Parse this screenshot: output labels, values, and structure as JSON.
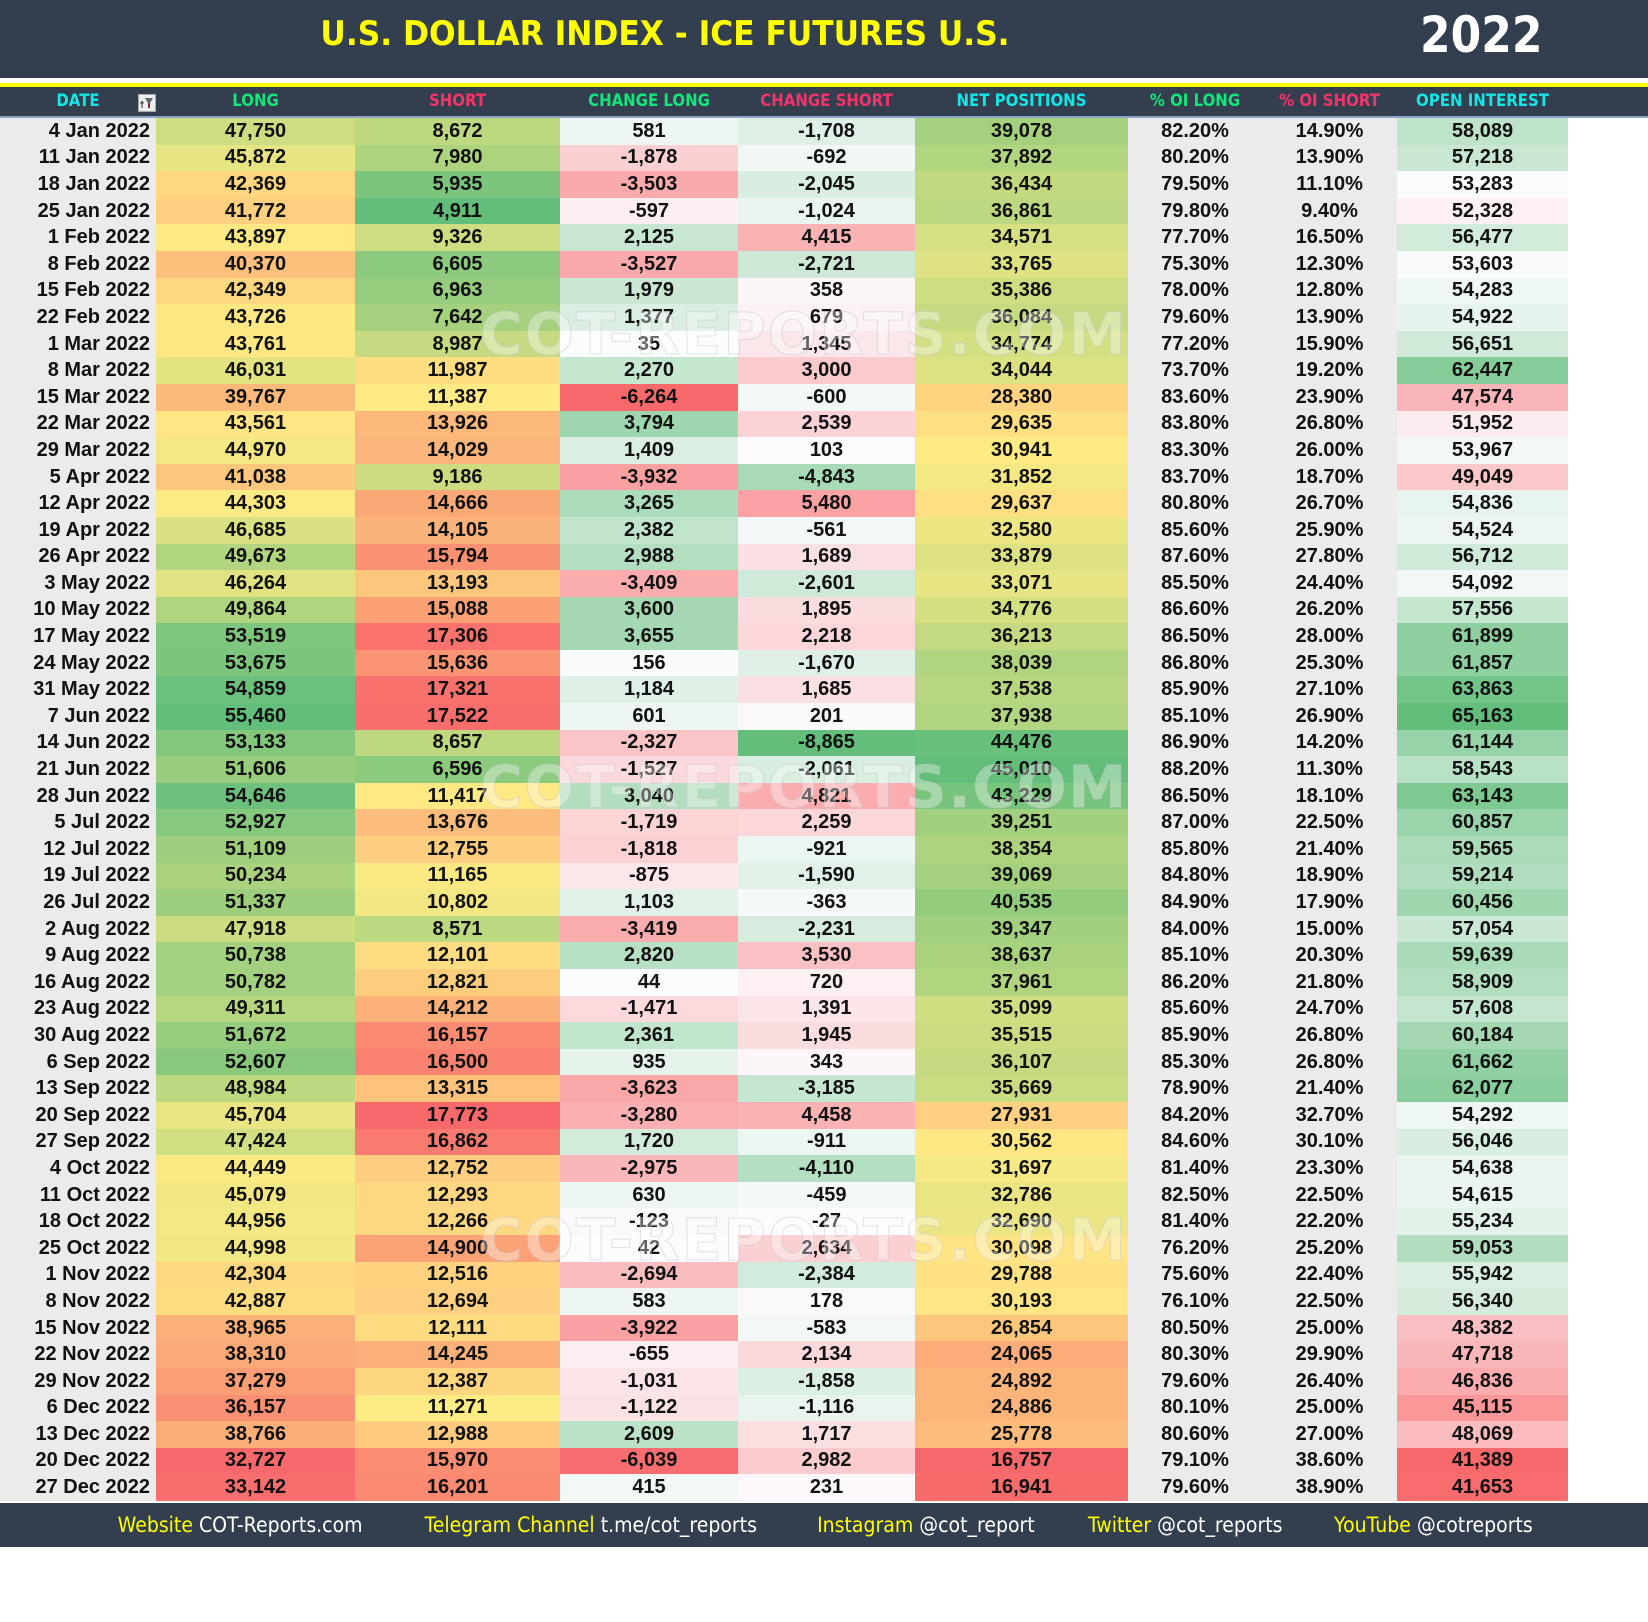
{
  "header": {
    "title": "U.S. DOLLAR INDEX - ICE FUTURES U.S.",
    "year": "2022"
  },
  "columns": [
    "DATE",
    "LONG",
    "SHORT",
    "CHANGE LONG",
    "CHANGE SHORT",
    "NET POSITIONS",
    "% OI LONG",
    "% OI SHORT",
    "OPEN INTEREST"
  ],
  "column_colors": [
    "#13e6e6",
    "#13e67a",
    "#f2346b",
    "#13e67a",
    "#f2346b",
    "#13e6e6",
    "#13e67a",
    "#f2346b",
    "#13e6e6"
  ],
  "filter_icon": "filter-icon",
  "watermark": "COT-REPORTS.COM",
  "rows": [
    [
      "4 Jan 2022",
      "47,750",
      "8,672",
      "581",
      "-1,708",
      "39,078",
      "82.20%",
      "14.90%",
      "58,089"
    ],
    [
      "11 Jan 2022",
      "45,872",
      "7,980",
      "-1,878",
      "-692",
      "37,892",
      "80.20%",
      "13.90%",
      "57,218"
    ],
    [
      "18 Jan 2022",
      "42,369",
      "5,935",
      "-3,503",
      "-2,045",
      "36,434",
      "79.50%",
      "11.10%",
      "53,283"
    ],
    [
      "25 Jan 2022",
      "41,772",
      "4,911",
      "-597",
      "-1,024",
      "36,861",
      "79.80%",
      "9.40%",
      "52,328"
    ],
    [
      "1 Feb 2022",
      "43,897",
      "9,326",
      "2,125",
      "4,415",
      "34,571",
      "77.70%",
      "16.50%",
      "56,477"
    ],
    [
      "8 Feb 2022",
      "40,370",
      "6,605",
      "-3,527",
      "-2,721",
      "33,765",
      "75.30%",
      "12.30%",
      "53,603"
    ],
    [
      "15 Feb 2022",
      "42,349",
      "6,963",
      "1,979",
      "358",
      "35,386",
      "78.00%",
      "12.80%",
      "54,283"
    ],
    [
      "22 Feb 2022",
      "43,726",
      "7,642",
      "1,377",
      "679",
      "36,084",
      "79.60%",
      "13.90%",
      "54,922"
    ],
    [
      "1 Mar 2022",
      "43,761",
      "8,987",
      "35",
      "1,345",
      "34,774",
      "77.20%",
      "15.90%",
      "56,651"
    ],
    [
      "8 Mar 2022",
      "46,031",
      "11,987",
      "2,270",
      "3,000",
      "34,044",
      "73.70%",
      "19.20%",
      "62,447"
    ],
    [
      "15 Mar 2022",
      "39,767",
      "11,387",
      "-6,264",
      "-600",
      "28,380",
      "83.60%",
      "23.90%",
      "47,574"
    ],
    [
      "22 Mar 2022",
      "43,561",
      "13,926",
      "3,794",
      "2,539",
      "29,635",
      "83.80%",
      "26.80%",
      "51,952"
    ],
    [
      "29 Mar 2022",
      "44,970",
      "14,029",
      "1,409",
      "103",
      "30,941",
      "83.30%",
      "26.00%",
      "53,967"
    ],
    [
      "5 Apr 2022",
      "41,038",
      "9,186",
      "-3,932",
      "-4,843",
      "31,852",
      "83.70%",
      "18.70%",
      "49,049"
    ],
    [
      "12 Apr 2022",
      "44,303",
      "14,666",
      "3,265",
      "5,480",
      "29,637",
      "80.80%",
      "26.70%",
      "54,836"
    ],
    [
      "19 Apr 2022",
      "46,685",
      "14,105",
      "2,382",
      "-561",
      "32,580",
      "85.60%",
      "25.90%",
      "54,524"
    ],
    [
      "26 Apr 2022",
      "49,673",
      "15,794",
      "2,988",
      "1,689",
      "33,879",
      "87.60%",
      "27.80%",
      "56,712"
    ],
    [
      "3 May 2022",
      "46,264",
      "13,193",
      "-3,409",
      "-2,601",
      "33,071",
      "85.50%",
      "24.40%",
      "54,092"
    ],
    [
      "10 May 2022",
      "49,864",
      "15,088",
      "3,600",
      "1,895",
      "34,776",
      "86.60%",
      "26.20%",
      "57,556"
    ],
    [
      "17 May 2022",
      "53,519",
      "17,306",
      "3,655",
      "2,218",
      "36,213",
      "86.50%",
      "28.00%",
      "61,899"
    ],
    [
      "24 May 2022",
      "53,675",
      "15,636",
      "156",
      "-1,670",
      "38,039",
      "86.80%",
      "25.30%",
      "61,857"
    ],
    [
      "31 May 2022",
      "54,859",
      "17,321",
      "1,184",
      "1,685",
      "37,538",
      "85.90%",
      "27.10%",
      "63,863"
    ],
    [
      "7 Jun 2022",
      "55,460",
      "17,522",
      "601",
      "201",
      "37,938",
      "85.10%",
      "26.90%",
      "65,163"
    ],
    [
      "14 Jun 2022",
      "53,133",
      "8,657",
      "-2,327",
      "-8,865",
      "44,476",
      "86.90%",
      "14.20%",
      "61,144"
    ],
    [
      "21 Jun 2022",
      "51,606",
      "6,596",
      "-1,527",
      "-2,061",
      "45,010",
      "88.20%",
      "11.30%",
      "58,543"
    ],
    [
      "28 Jun 2022",
      "54,646",
      "11,417",
      "3,040",
      "4,821",
      "43,229",
      "86.50%",
      "18.10%",
      "63,143"
    ],
    [
      "5 Jul 2022",
      "52,927",
      "13,676",
      "-1,719",
      "2,259",
      "39,251",
      "87.00%",
      "22.50%",
      "60,857"
    ],
    [
      "12 Jul 2022",
      "51,109",
      "12,755",
      "-1,818",
      "-921",
      "38,354",
      "85.80%",
      "21.40%",
      "59,565"
    ],
    [
      "19 Jul 2022",
      "50,234",
      "11,165",
      "-875",
      "-1,590",
      "39,069",
      "84.80%",
      "18.90%",
      "59,214"
    ],
    [
      "26 Jul 2022",
      "51,337",
      "10,802",
      "1,103",
      "-363",
      "40,535",
      "84.90%",
      "17.90%",
      "60,456"
    ],
    [
      "2 Aug 2022",
      "47,918",
      "8,571",
      "-3,419",
      "-2,231",
      "39,347",
      "84.00%",
      "15.00%",
      "57,054"
    ],
    [
      "9 Aug 2022",
      "50,738",
      "12,101",
      "2,820",
      "3,530",
      "38,637",
      "85.10%",
      "20.30%",
      "59,639"
    ],
    [
      "16 Aug 2022",
      "50,782",
      "12,821",
      "44",
      "720",
      "37,961",
      "86.20%",
      "21.80%",
      "58,909"
    ],
    [
      "23 Aug 2022",
      "49,311",
      "14,212",
      "-1,471",
      "1,391",
      "35,099",
      "85.60%",
      "24.70%",
      "57,608"
    ],
    [
      "30 Aug 2022",
      "51,672",
      "16,157",
      "2,361",
      "1,945",
      "35,515",
      "85.90%",
      "26.80%",
      "60,184"
    ],
    [
      "6 Sep 2022",
      "52,607",
      "16,500",
      "935",
      "343",
      "36,107",
      "85.30%",
      "26.80%",
      "61,662"
    ],
    [
      "13 Sep 2022",
      "48,984",
      "13,315",
      "-3,623",
      "-3,185",
      "35,669",
      "78.90%",
      "21.40%",
      "62,077"
    ],
    [
      "20 Sep 2022",
      "45,704",
      "17,773",
      "-3,280",
      "4,458",
      "27,931",
      "84.20%",
      "32.70%",
      "54,292"
    ],
    [
      "27 Sep 2022",
      "47,424",
      "16,862",
      "1,720",
      "-911",
      "30,562",
      "84.60%",
      "30.10%",
      "56,046"
    ],
    [
      "4 Oct 2022",
      "44,449",
      "12,752",
      "-2,975",
      "-4,110",
      "31,697",
      "81.40%",
      "23.30%",
      "54,638"
    ],
    [
      "11 Oct 2022",
      "45,079",
      "12,293",
      "630",
      "-459",
      "32,786",
      "82.50%",
      "22.50%",
      "54,615"
    ],
    [
      "18 Oct 2022",
      "44,956",
      "12,266",
      "-123",
      "-27",
      "32,690",
      "81.40%",
      "22.20%",
      "55,234"
    ],
    [
      "25 Oct 2022",
      "44,998",
      "14,900",
      "42",
      "2,634",
      "30,098",
      "76.20%",
      "25.20%",
      "59,053"
    ],
    [
      "1 Nov 2022",
      "42,304",
      "12,516",
      "-2,694",
      "-2,384",
      "29,788",
      "75.60%",
      "22.40%",
      "55,942"
    ],
    [
      "8 Nov 2022",
      "42,887",
      "12,694",
      "583",
      "178",
      "30,193",
      "76.10%",
      "22.50%",
      "56,340"
    ],
    [
      "15 Nov 2022",
      "38,965",
      "12,111",
      "-3,922",
      "-583",
      "26,854",
      "80.50%",
      "25.00%",
      "48,382"
    ],
    [
      "22 Nov 2022",
      "38,310",
      "14,245",
      "-655",
      "2,134",
      "24,065",
      "80.30%",
      "29.90%",
      "47,718"
    ],
    [
      "29 Nov 2022",
      "37,279",
      "12,387",
      "-1,031",
      "-1,858",
      "24,892",
      "79.60%",
      "26.40%",
      "46,836"
    ],
    [
      "6 Dec 2022",
      "36,157",
      "11,271",
      "-1,122",
      "-1,116",
      "24,886",
      "80.10%",
      "25.00%",
      "45,115"
    ],
    [
      "13 Dec 2022",
      "38,766",
      "12,988",
      "2,609",
      "1,717",
      "25,778",
      "80.60%",
      "27.00%",
      "48,069"
    ],
    [
      "20 Dec 2022",
      "32,727",
      "15,970",
      "-6,039",
      "2,982",
      "16,757",
      "79.10%",
      "38.60%",
      "41,389"
    ],
    [
      "27 Dec 2022",
      "33,142",
      "16,201",
      "415",
      "231",
      "16,941",
      "79.60%",
      "38.90%",
      "41,653"
    ]
  ],
  "footer": [
    {
      "label": "Website",
      "value": "COT-Reports.com"
    },
    {
      "label": "Telegram Channel",
      "value": "t.me/cot_reports"
    },
    {
      "label": "Instagram",
      "value": "@cot_report"
    },
    {
      "label": "Twitter",
      "value": "@cot_reports"
    },
    {
      "label": "YouTube",
      "value": "@cotreports"
    }
  ]
}
